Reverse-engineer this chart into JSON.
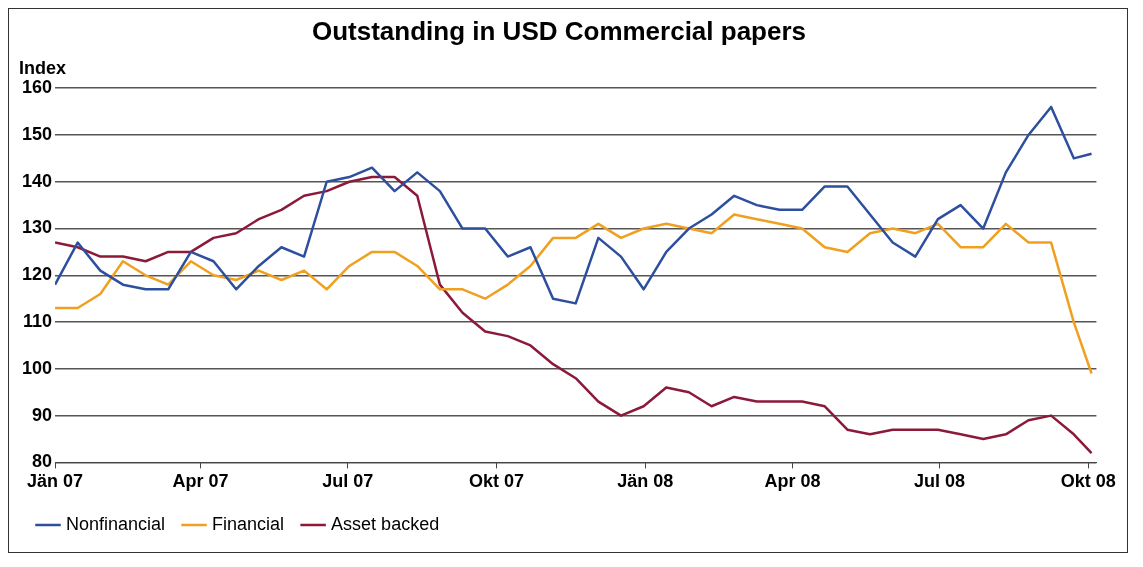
{
  "chart_data": {
    "type": "line",
    "title": "Outstanding in USD Commercial papers",
    "ylabel": "Index",
    "x": [
      "2007-01-01",
      "2007-01-15",
      "2007-01-29",
      "2007-02-12",
      "2007-02-26",
      "2007-03-12",
      "2007-03-26",
      "2007-04-09",
      "2007-04-23",
      "2007-05-07",
      "2007-05-21",
      "2007-06-04",
      "2007-06-18",
      "2007-07-02",
      "2007-07-16",
      "2007-07-30",
      "2007-08-13",
      "2007-08-27",
      "2007-09-10",
      "2007-09-24",
      "2007-10-08",
      "2007-10-22",
      "2007-11-05",
      "2007-11-19",
      "2007-12-03",
      "2007-12-17",
      "2007-12-31",
      "2008-01-14",
      "2008-01-28",
      "2008-02-11",
      "2008-02-25",
      "2008-03-10",
      "2008-03-24",
      "2008-04-07",
      "2008-04-21",
      "2008-05-05",
      "2008-05-19",
      "2008-06-02",
      "2008-06-16",
      "2008-06-30",
      "2008-07-14",
      "2008-07-28",
      "2008-08-11",
      "2008-08-25",
      "2008-09-08",
      "2008-09-22",
      "2008-10-03"
    ],
    "series": [
      {
        "name": "Nonfinancial",
        "color": "#2e4f9e",
        "values": [
          118,
          127,
          121,
          118,
          117,
          117,
          125,
          123,
          117,
          122,
          126,
          124,
          140,
          141,
          143,
          138,
          142,
          138,
          130,
          130,
          124,
          126,
          115,
          114,
          128,
          124,
          117,
          125,
          130,
          133,
          137,
          135,
          134,
          134,
          139,
          139,
          133,
          127,
          124,
          132,
          135,
          130,
          142,
          150,
          156,
          145,
          146
        ]
      },
      {
        "name": "Financial",
        "color": "#f0a020",
        "values": [
          113,
          113,
          116,
          123,
          120,
          118,
          123,
          120,
          119,
          121,
          119,
          121,
          117,
          122,
          125,
          125,
          122,
          117,
          117,
          115,
          118,
          122,
          128,
          128,
          131,
          128,
          130,
          131,
          130,
          129,
          133,
          132,
          131,
          130,
          126,
          125,
          129,
          130,
          129,
          131,
          126,
          126,
          131,
          127,
          127,
          110,
          99
        ]
      },
      {
        "name": "Asset backed",
        "color": "#8b1a3a",
        "values": [
          127,
          126,
          124,
          124,
          123,
          125,
          125,
          128,
          129,
          132,
          134,
          137,
          138,
          140,
          141,
          141,
          137,
          118,
          112,
          108,
          107,
          105,
          101,
          98,
          93,
          90,
          92,
          96,
          95,
          92,
          94,
          93,
          93,
          93,
          92,
          87,
          86,
          87,
          87,
          87,
          86,
          85,
          86,
          89,
          90,
          86,
          82
        ]
      }
    ],
    "xlim": [
      "2007-01-01",
      "2008-10-06"
    ],
    "xticks": [
      {
        "value": "2007-01-01",
        "label": "Jän 07"
      },
      {
        "value": "2007-04-01",
        "label": "Apr 07"
      },
      {
        "value": "2007-07-01",
        "label": "Jul 07"
      },
      {
        "value": "2007-10-01",
        "label": "Okt 07"
      },
      {
        "value": "2008-01-01",
        "label": "Jän 08"
      },
      {
        "value": "2008-04-01",
        "label": "Apr 08"
      },
      {
        "value": "2008-07-01",
        "label": "Jul 08"
      },
      {
        "value": "2008-10-01",
        "label": "Okt 08"
      }
    ],
    "ylim": [
      80,
      160
    ],
    "yticks": [
      80,
      90,
      100,
      110,
      120,
      130,
      140,
      150,
      160
    ],
    "grid": "y",
    "legend": "bottom",
    "marker": "none",
    "line_style": "solid"
  }
}
